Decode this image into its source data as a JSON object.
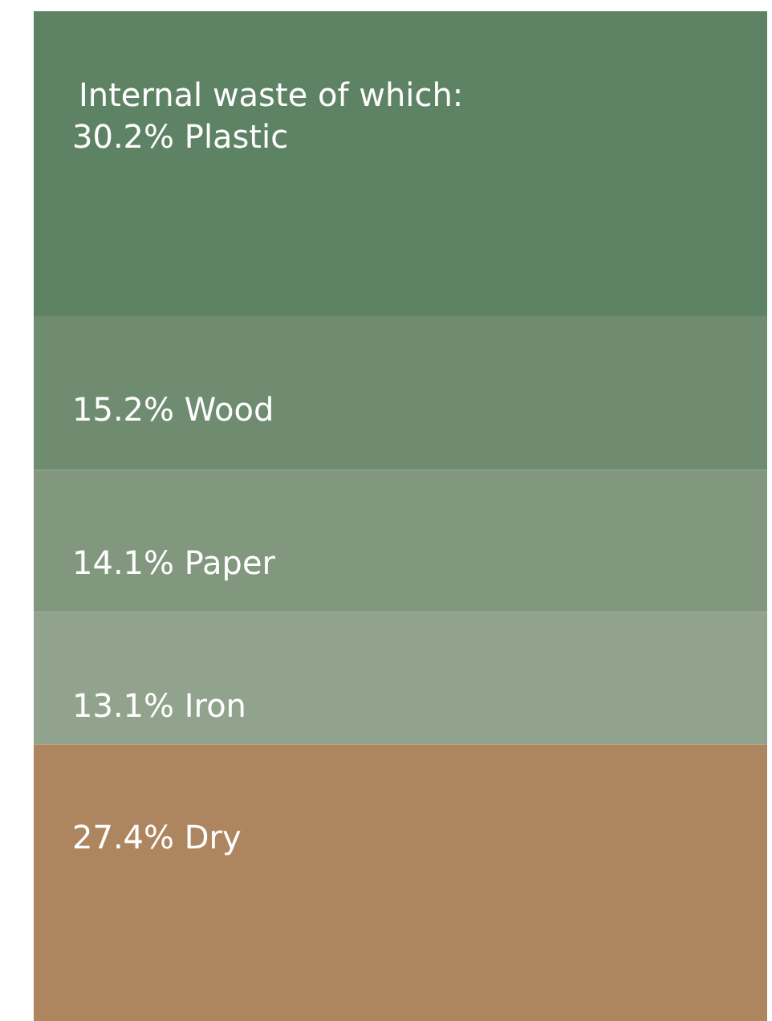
{
  "chart_data": {
    "type": "bar",
    "stacked": true,
    "title": "Internal waste of which:",
    "categories": [
      null
    ],
    "series": [
      {
        "color": "#ad8660",
        "values": [
          27.4
        ],
        "value_labels": [
          "27.4% Dry"
        ]
      },
      {
        "color": "#91a38c",
        "values": [
          13.1
        ],
        "value_labels": [
          "13.1% Iron"
        ]
      },
      {
        "color": "#81987e",
        "values": [
          14.1
        ],
        "value_labels": [
          "14.1% Paper"
        ]
      },
      {
        "color": "#6f8c71",
        "values": [
          15.2
        ],
        "value_labels": [
          "15.2% Wood"
        ]
      },
      {
        "color": "#5e8264",
        "values": [
          30.2
        ],
        "value_labels": [
          "30.2% Plastic"
        ]
      }
    ]
  }
}
